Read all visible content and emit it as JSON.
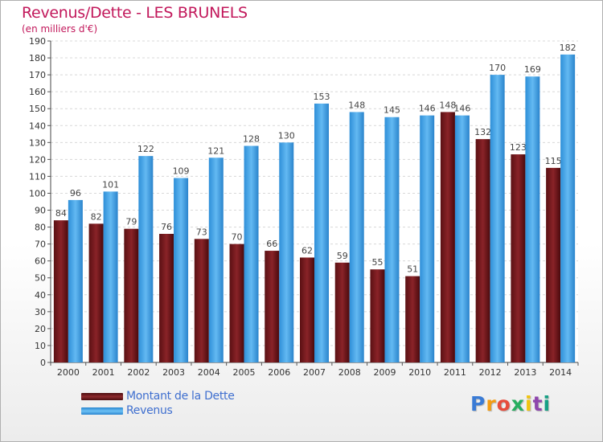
{
  "chart_data": {
    "type": "bar",
    "title": "Revenus/Dette - LES BRUNELS",
    "subtitle": "(en milliers d'€)",
    "categories": [
      "2000",
      "2001",
      "2002",
      "2003",
      "2004",
      "2005",
      "2006",
      "2007",
      "2008",
      "2009",
      "2010",
      "2011",
      "2012",
      "2013",
      "2014"
    ],
    "series": [
      {
        "name": "Montant de la Dette",
        "color": "#7a1a1e",
        "values": [
          84,
          82,
          79,
          76,
          73,
          70,
          66,
          62,
          59,
          55,
          51,
          148,
          132,
          123,
          115
        ]
      },
      {
        "name": "Revenus",
        "color": "#4aa8e8",
        "values": [
          96,
          101,
          122,
          109,
          121,
          128,
          130,
          153,
          148,
          145,
          146,
          146,
          170,
          169,
          182
        ]
      }
    ],
    "ylim": [
      0,
      190
    ],
    "ytick_step": 10,
    "grid": true,
    "legend_position": "bottom-left"
  },
  "brand": {
    "letters": [
      "P",
      "r",
      "o",
      "x",
      "i",
      "t",
      "i"
    ],
    "colors": [
      "#3a7bd5",
      "#f39c12",
      "#e74c3c",
      "#27ae60",
      "#f1c40f",
      "#8e44ad",
      "#16a085"
    ]
  }
}
